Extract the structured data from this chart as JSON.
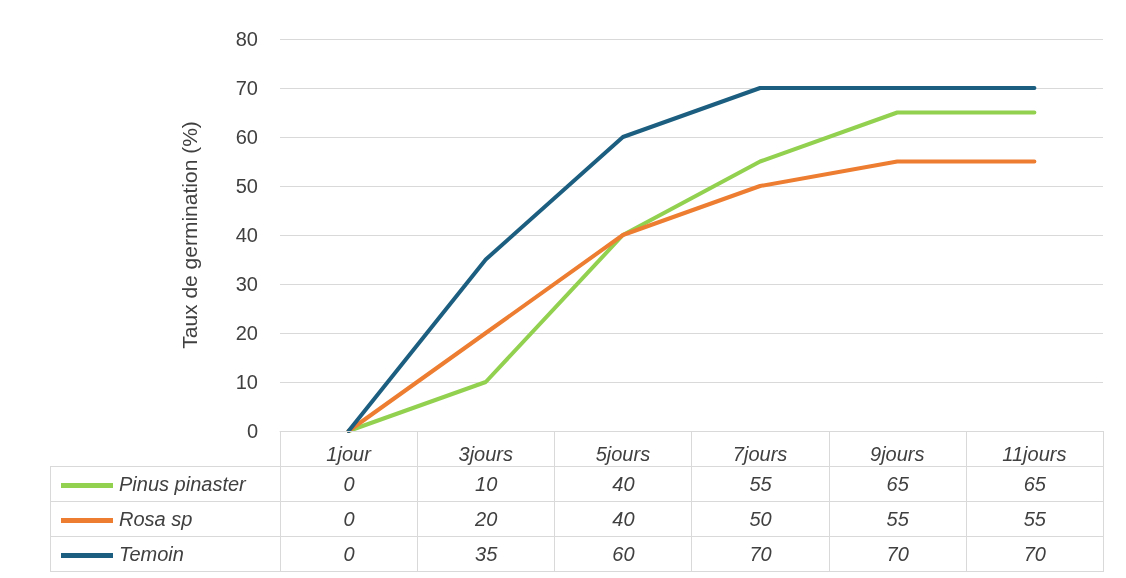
{
  "chart_data": {
    "type": "line",
    "ylabel": "Taux de germination (%)",
    "categories": [
      "1jour",
      "3jours",
      "5jours",
      "7jours",
      "9jours",
      "11jours"
    ],
    "series": [
      {
        "name": "Pinus pinaster",
        "color": "#92d050",
        "values": [
          0,
          10,
          40,
          55,
          65,
          65
        ]
      },
      {
        "name": "Rosa sp",
        "color": "#ed7d31",
        "values": [
          0,
          20,
          40,
          50,
          55,
          55
        ]
      },
      {
        "name": "Temoin",
        "color": "#1b5e7f",
        "values": [
          0,
          35,
          60,
          70,
          70,
          70
        ]
      }
    ],
    "ylim": [
      0,
      80
    ],
    "yticks": [
      0,
      10,
      20,
      30,
      40,
      50,
      60,
      70,
      80
    ],
    "grid": "y",
    "legend": "bottom",
    "data_labels": true,
    "marker": "none",
    "line_style": "solid"
  }
}
